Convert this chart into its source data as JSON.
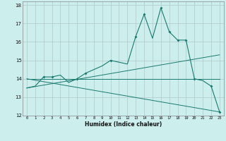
{
  "title": "",
  "xlabel": "Humidex (Indice chaleur)",
  "background_color": "#cceeed",
  "line_color": "#1a7a6e",
  "grid_color": "#b0c8c8",
  "xlim": [
    -0.5,
    23.5
  ],
  "ylim": [
    12,
    18.2
  ],
  "yticks": [
    12,
    13,
    14,
    15,
    16,
    17,
    18
  ],
  "xticks": [
    0,
    1,
    2,
    3,
    4,
    5,
    6,
    7,
    8,
    9,
    10,
    11,
    12,
    13,
    14,
    15,
    16,
    17,
    18,
    19,
    20,
    21,
    22,
    23
  ],
  "main_x": [
    0,
    1,
    2,
    3,
    4,
    5,
    6,
    7,
    8,
    9,
    10,
    11,
    12,
    13,
    14,
    15,
    16,
    17,
    18,
    19,
    20,
    21,
    22,
    23
  ],
  "main_y": [
    13.5,
    13.6,
    14.1,
    14.1,
    14.2,
    13.8,
    14.0,
    14.3,
    14.5,
    14.7,
    15.0,
    14.9,
    14.8,
    16.3,
    17.5,
    16.2,
    17.85,
    16.55,
    16.1,
    16.1,
    14.0,
    13.9,
    13.6,
    12.2
  ],
  "line2_x": [
    0,
    23
  ],
  "line2_y": [
    14.0,
    14.0
  ],
  "line3_x": [
    0,
    23
  ],
  "line3_y": [
    13.5,
    15.3
  ],
  "line4_x": [
    0,
    23
  ],
  "line4_y": [
    14.0,
    12.2
  ],
  "marker_x": [
    2,
    3,
    6,
    7,
    10,
    13,
    14,
    16,
    17,
    18,
    19,
    20,
    22,
    23
  ],
  "marker_y": [
    14.1,
    14.1,
    14.0,
    14.3,
    15.0,
    16.3,
    17.5,
    17.85,
    16.55,
    16.1,
    16.1,
    14.0,
    13.6,
    12.2
  ]
}
